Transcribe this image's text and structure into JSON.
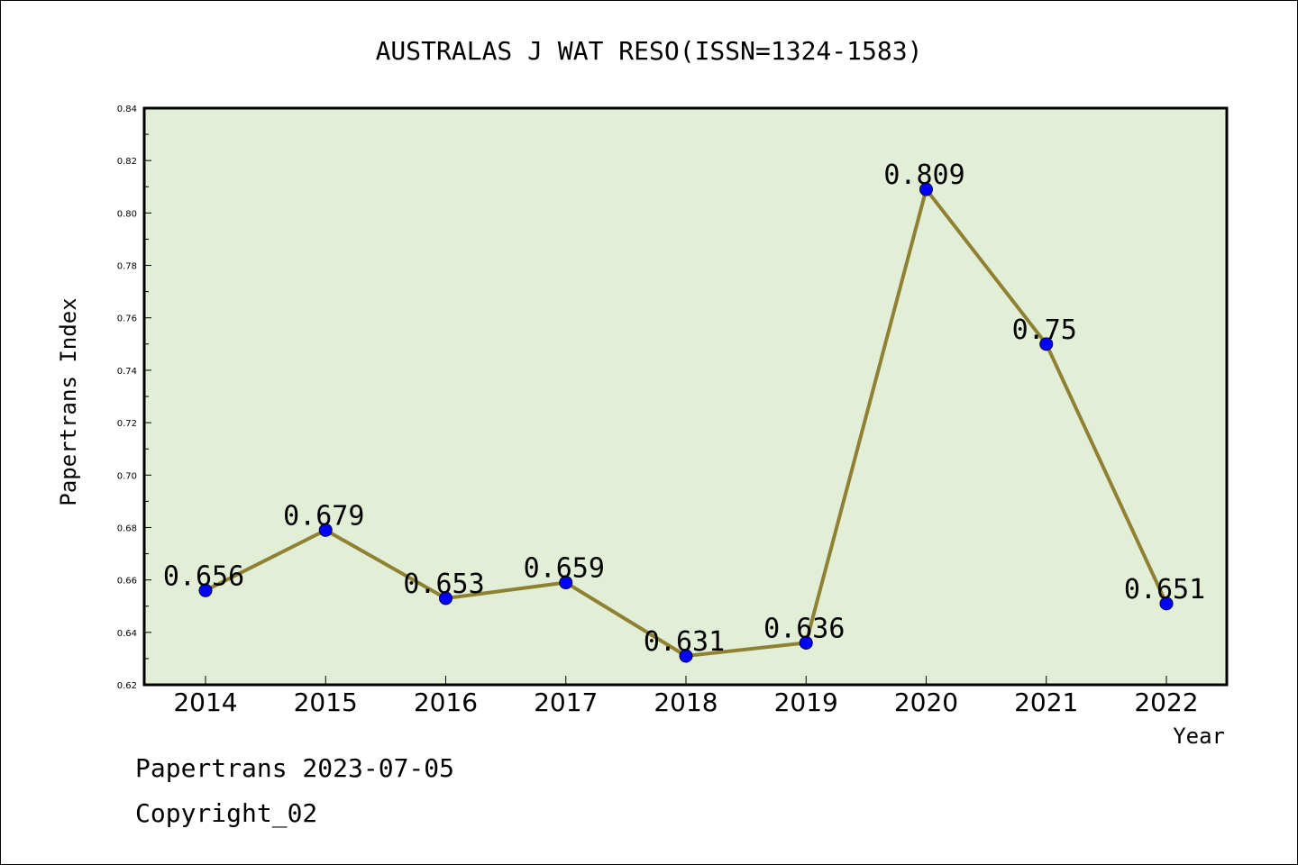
{
  "chart_data": {
    "type": "line",
    "title": "AUSTRALAS J WAT RESO(ISSN=1324-1583)",
    "xlabel": "Year",
    "ylabel": "Papertrans Index",
    "categories": [
      "2014",
      "2015",
      "2016",
      "2017",
      "2018",
      "2019",
      "2020",
      "2021",
      "2022"
    ],
    "series": [
      {
        "values": [
          0.656,
          0.679,
          0.653,
          0.659,
          0.631,
          0.636,
          0.809,
          0.75,
          0.651
        ],
        "labels": [
          "0.656",
          "0.679",
          "0.653",
          "0.659",
          "0.631",
          "0.636",
          "0.809",
          "0.75",
          "0.651"
        ]
      }
    ],
    "ylim": [
      0.62,
      0.84
    ],
    "yticks": [
      "0.62",
      "0.64",
      "0.66",
      "0.68",
      "0.70",
      "0.72",
      "0.74",
      "0.76",
      "0.78",
      "0.80",
      "0.82",
      "0.84"
    ],
    "grid": false,
    "colors": {
      "plot_background": "#e2efd6",
      "line": "#8f8134",
      "marker": "#0000ff"
    }
  },
  "footer": {
    "date_line": "Papertrans 2023-07-05",
    "copyright_line": "Copyright_02"
  }
}
